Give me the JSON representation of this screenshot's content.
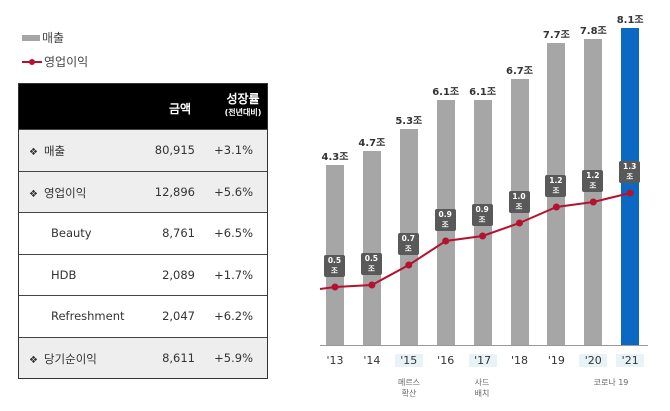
{
  "legend": {
    "revenue_label": "매출",
    "op_profit_label": "영업이익"
  },
  "table": {
    "header": {
      "amount": "금액",
      "growth": "성장률",
      "growth_sub": "(전년대비)"
    },
    "rows": [
      {
        "name": "매출",
        "amount": "80,915",
        "growth": "+3.1%",
        "bullet": "❖",
        "shaded": true
      },
      {
        "name": "영업이익",
        "amount": "12,896",
        "growth": "+5.6%",
        "bullet": "❖",
        "shaded": true
      },
      {
        "name": "Beauty",
        "amount": "8,761",
        "growth": "+6.5%",
        "bullet": "",
        "shaded": false
      },
      {
        "name": "HDB",
        "amount": "2,089",
        "growth": "+1.7%",
        "bullet": "",
        "shaded": false
      },
      {
        "name": "Refreshment",
        "amount": "2,047",
        "growth": "+6.2%",
        "bullet": "",
        "shaded": false
      },
      {
        "name": "당기순이익",
        "amount": "8,611",
        "growth": "+5.9%",
        "bullet": "❖",
        "shaded": true
      }
    ]
  },
  "colors": {
    "bar": "#a6a6a6",
    "bar_current": "#0c69c3",
    "line": "#b4122e",
    "op_label_bg": "#595959"
  },
  "chart_data": {
    "type": "bar",
    "title": "",
    "xlabel": "",
    "ylabel": "",
    "categories": [
      "'13",
      "'14",
      "'15",
      "'16",
      "'17",
      "'18",
      "'19",
      "'20",
      "'21"
    ],
    "series": [
      {
        "name": "매출",
        "type": "bar",
        "unit": "조",
        "values": [
          4.3,
          4.7,
          5.3,
          6.1,
          6.1,
          6.7,
          7.7,
          7.8,
          8.1
        ],
        "labels": [
          "4.3조",
          "4.7조",
          "5.3조",
          "6.1조",
          "6.1조",
          "6.7조",
          "7.7조",
          "7.8조",
          "8.1조"
        ]
      },
      {
        "name": "영업이익",
        "type": "line",
        "unit": "조",
        "values": [
          0.5,
          0.5,
          0.7,
          0.9,
          0.9,
          1.0,
          1.2,
          1.2,
          1.3
        ],
        "labels": [
          "0.5조",
          "0.5조",
          "0.7조",
          "0.9조",
          "0.9조",
          "1.0조",
          "1.2조",
          "1.2조",
          "1.3조"
        ]
      }
    ],
    "highlighted_categories": [
      "'15",
      "'17",
      "'20",
      "'21"
    ],
    "annotations": [
      {
        "category": "'15",
        "text": [
          "메르스",
          "확산"
        ]
      },
      {
        "category": "'17",
        "text": [
          "사드",
          "배치"
        ]
      },
      {
        "category": "'20-'21",
        "text": [
          "코로나 19"
        ]
      }
    ],
    "grid": false,
    "legend_position": "top-left"
  }
}
